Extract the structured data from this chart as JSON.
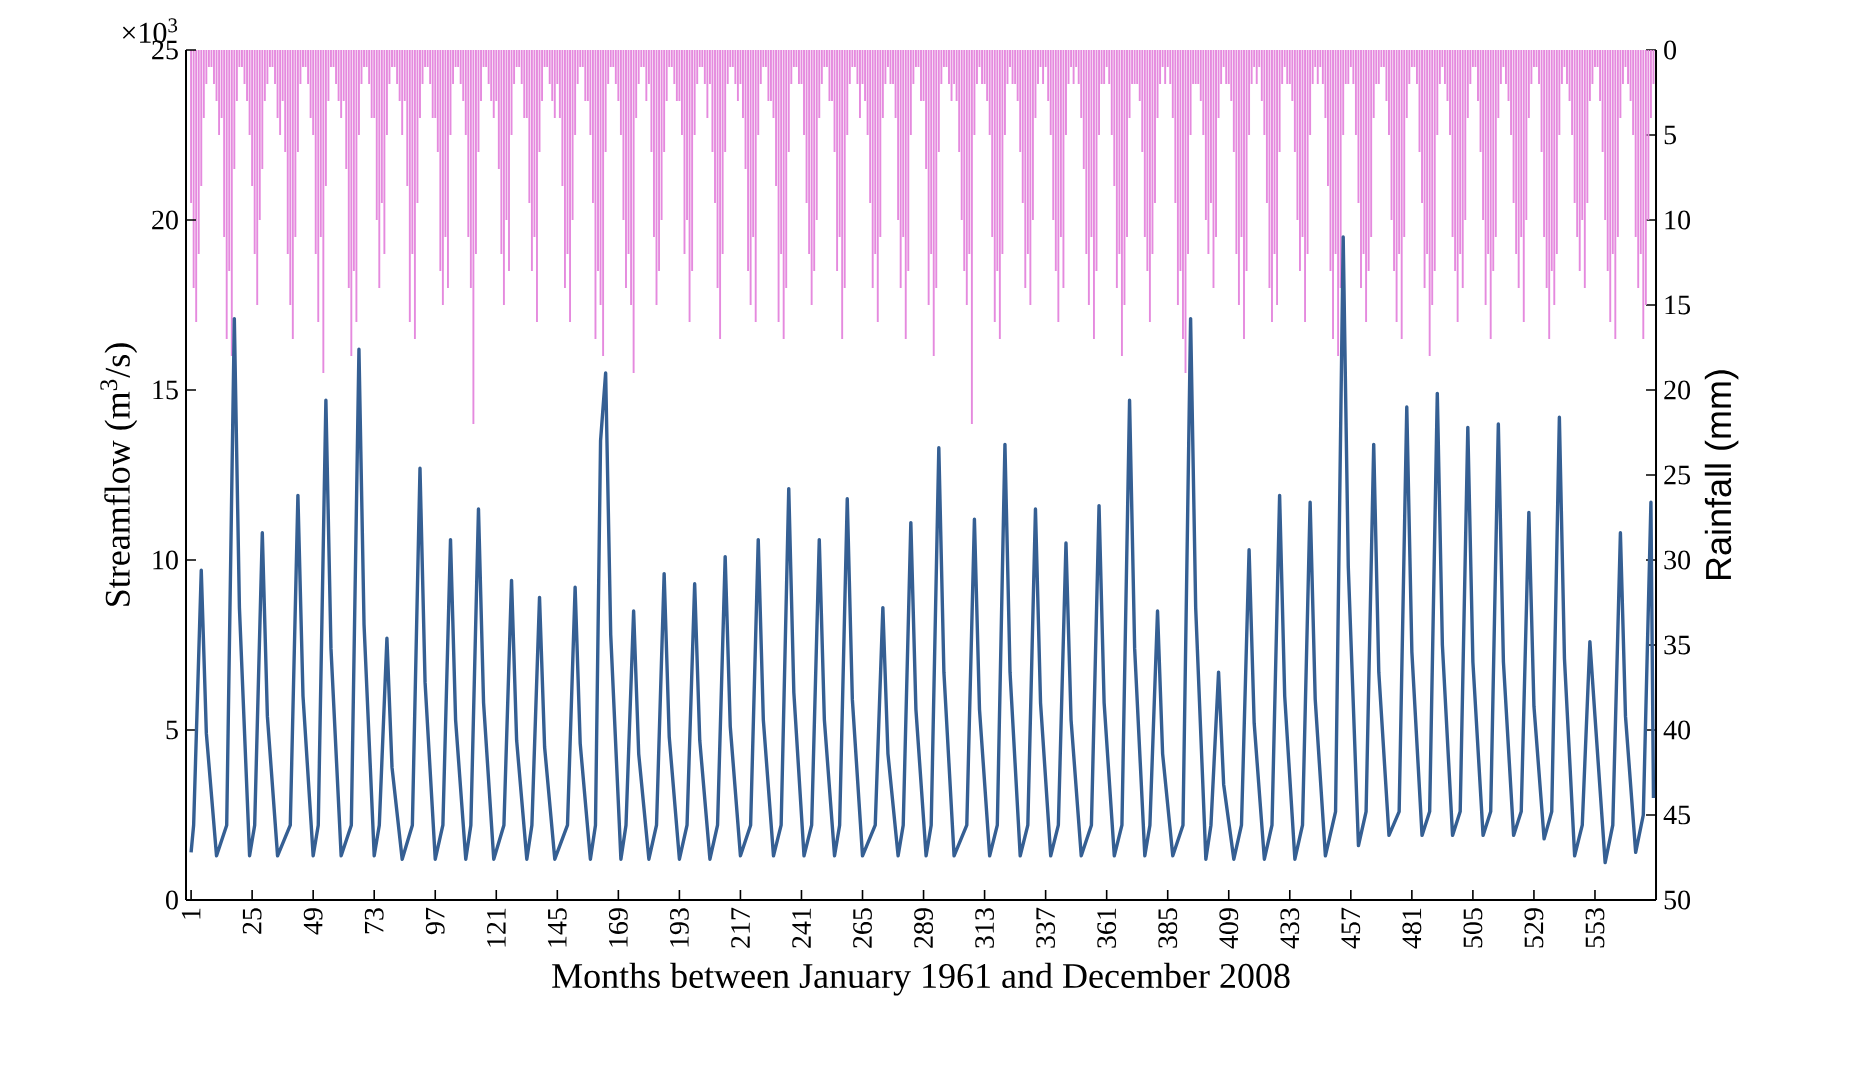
{
  "chart_data": {
    "type": "line",
    "xlabel": "Months between January 1961 and December 2008",
    "ylabel": "Streamflow (m$^{3}$/s)",
    "y2label": "Rainfall (mm)",
    "annotations": [
      "×10$^{3}$"
    ],
    "xlim": [
      -1,
      577
    ],
    "xticks": [
      1,
      25,
      49,
      73,
      97,
      121,
      145,
      169,
      193,
      217,
      241,
      265,
      289,
      313,
      337,
      361,
      385,
      409,
      433,
      457,
      481,
      505,
      529,
      553
    ],
    "ylim": [
      0,
      25
    ],
    "yticks": [
      0,
      5,
      10,
      15,
      20,
      25
    ],
    "y2lim": [
      50,
      0
    ],
    "y2ticks": [
      0,
      5,
      10,
      15,
      20,
      25,
      30,
      35,
      40,
      45,
      50
    ],
    "x": [
      1,
      2,
      3,
      4,
      5,
      6,
      7,
      8,
      9,
      10,
      11,
      12,
      13,
      14,
      15,
      16,
      17,
      18,
      19,
      20,
      21,
      22,
      23,
      24,
      25,
      26,
      27,
      28,
      29,
      30,
      31,
      32,
      33,
      34,
      35,
      36,
      37,
      38,
      39,
      40,
      41,
      42,
      43,
      44,
      45,
      46,
      47,
      48,
      49,
      50,
      51,
      52,
      53,
      54,
      55,
      56,
      57,
      58,
      59,
      60,
      61,
      62,
      63,
      64,
      65,
      66,
      67,
      68,
      69,
      70,
      71,
      72,
      73,
      74,
      75,
      76,
      77,
      78,
      79,
      80,
      81,
      82,
      83,
      84,
      85,
      86,
      87,
      88,
      89,
      90,
      91,
      92,
      93,
      94,
      95,
      96,
      97,
      98,
      99,
      100,
      101,
      102,
      103,
      104,
      105,
      106,
      107,
      108,
      109,
      110,
      111,
      112,
      113,
      114,
      115,
      116,
      117,
      118,
      119,
      120,
      121,
      122,
      123,
      124,
      125,
      126,
      127,
      128,
      129,
      130,
      131,
      132,
      133,
      134,
      135,
      136,
      137,
      138,
      139,
      140,
      141,
      142,
      143,
      144,
      145,
      146,
      147,
      148,
      149,
      150,
      151,
      152,
      153,
      154,
      155,
      156,
      157,
      158,
      159,
      160,
      161,
      162,
      163,
      164,
      165,
      166,
      167,
      168,
      169,
      170,
      171,
      172,
      173,
      174,
      175,
      176,
      177,
      178,
      179,
      180,
      181,
      182,
      183,
      184,
      185,
      186,
      187,
      188,
      189,
      190,
      191,
      192,
      193,
      194,
      195,
      196,
      197,
      198,
      199,
      200,
      201,
      202,
      203,
      204,
      205,
      206,
      207,
      208,
      209,
      210,
      211,
      212,
      213,
      214,
      215,
      216,
      217,
      218,
      219,
      220,
      221,
      222,
      223,
      224,
      225,
      226,
      227,
      228,
      229,
      230,
      231,
      232,
      233,
      234,
      235,
      236,
      237,
      238,
      239,
      240,
      241,
      242,
      243,
      244,
      245,
      246,
      247,
      248,
      249,
      250,
      251,
      252,
      253,
      254,
      255,
      256,
      257,
      258,
      259,
      260,
      261,
      262,
      263,
      264,
      265,
      266,
      267,
      268,
      269,
      270,
      271,
      272,
      273,
      274,
      275,
      276,
      277,
      278,
      279,
      280,
      281,
      282,
      283,
      284,
      285,
      286,
      287,
      288,
      289,
      290,
      291,
      292,
      293,
      294,
      295,
      296,
      297,
      298,
      299,
      300,
      301,
      302,
      303,
      304,
      305,
      306,
      307,
      308,
      309,
      310,
      311,
      312,
      313,
      314,
      315,
      316,
      317,
      318,
      319,
      320,
      321,
      322,
      323,
      324,
      325,
      326,
      327,
      328,
      329,
      330,
      331,
      332,
      333,
      334,
      335,
      336,
      337,
      338,
      339,
      340,
      341,
      342,
      343,
      344,
      345,
      346,
      347,
      348,
      349,
      350,
      351,
      352,
      353,
      354,
      355,
      356,
      357,
      358,
      359,
      360,
      361,
      362,
      363,
      364,
      365,
      366,
      367,
      368,
      369,
      370,
      371,
      372,
      373,
      374,
      375,
      376,
      377,
      378,
      379,
      380,
      381,
      382,
      383,
      384,
      385,
      386,
      387,
      388,
      389,
      390,
      391,
      392,
      393,
      394,
      395,
      396,
      397,
      398,
      399,
      400,
      401,
      402,
      403,
      404,
      405,
      406,
      407,
      408,
      409,
      410,
      411,
      412,
      413,
      414,
      415,
      416,
      417,
      418,
      419,
      420,
      421,
      422,
      423,
      424,
      425,
      426,
      427,
      428,
      429,
      430,
      431,
      432,
      433,
      434,
      435,
      436,
      437,
      438,
      439,
      440,
      441,
      442,
      443,
      444,
      445,
      446,
      447,
      448,
      449,
      450,
      451,
      452,
      453,
      454,
      455,
      456,
      457,
      458,
      459,
      460,
      461,
      462,
      463,
      464,
      465,
      466,
      467,
      468,
      469,
      470,
      471,
      472,
      473,
      474,
      475,
      476,
      477,
      478,
      479,
      480,
      481,
      482,
      483,
      484,
      485,
      486,
      487,
      488,
      489,
      490,
      491,
      492,
      493,
      494,
      495,
      496,
      497,
      498,
      499,
      500,
      501,
      502,
      503,
      504,
      505,
      506,
      507,
      508,
      509,
      510,
      511,
      512,
      513,
      514,
      515,
      516,
      517,
      518,
      519,
      520,
      521,
      522,
      523,
      524,
      525,
      526,
      527,
      528,
      529,
      530,
      531,
      532,
      533,
      534,
      535,
      536,
      537,
      538,
      539,
      540,
      541,
      542,
      543,
      544,
      545,
      546,
      547,
      548,
      549,
      550,
      551,
      552,
      553,
      554,
      555,
      556,
      557,
      558,
      559,
      560,
      561,
      562,
      563,
      564,
      565,
      566,
      567,
      568,
      569,
      570,
      571,
      572,
      573,
      574,
      575,
      576
    ],
    "series": [
      {
        "type": "bar",
        "axis": "y2",
        "color": "#e58ade",
        "values": [
          9,
          14,
          16,
          12,
          8,
          4,
          2,
          1,
          1,
          2,
          3,
          5,
          4,
          11,
          17,
          13,
          18,
          7,
          3,
          1,
          1,
          2,
          3,
          5,
          8,
          12,
          15,
          10,
          7,
          3,
          2,
          1,
          1,
          2,
          4,
          5,
          3,
          6,
          12,
          15,
          17,
          11,
          6,
          2,
          1,
          1,
          2,
          4,
          5,
          12,
          16,
          11,
          19,
          8,
          3,
          1,
          1,
          2,
          3,
          4,
          3,
          7,
          14,
          18,
          13,
          16,
          5,
          2,
          1,
          1,
          2,
          4,
          4,
          10,
          14,
          9,
          12,
          5,
          2,
          1,
          1,
          2,
          3,
          5,
          3,
          8,
          16,
          12,
          17,
          9,
          4,
          2,
          1,
          1,
          2,
          4,
          4,
          6,
          13,
          15,
          11,
          14,
          5,
          2,
          1,
          1,
          2,
          3,
          5,
          11,
          14,
          22,
          12,
          6,
          3,
          1,
          1,
          2,
          3,
          4,
          3,
          7,
          12,
          15,
          10,
          13,
          5,
          2,
          1,
          1,
          2,
          4,
          4,
          9,
          13,
          11,
          16,
          6,
          3,
          1,
          1,
          2,
          3,
          4,
          2,
          4,
          8,
          14,
          12,
          16,
          10,
          5,
          2,
          1,
          1,
          3,
          3,
          5,
          9,
          17,
          13,
          15,
          18,
          6,
          2,
          1,
          1,
          2,
          3,
          5,
          10,
          14,
          12,
          15,
          19,
          4,
          2,
          1,
          1,
          3,
          2,
          6,
          11,
          15,
          13,
          10,
          6,
          3,
          1,
          1,
          2,
          3,
          3,
          5,
          12,
          10,
          16,
          13,
          5,
          2,
          1,
          1,
          2,
          4,
          2,
          6,
          9,
          14,
          17,
          12,
          6,
          2,
          1,
          1,
          2,
          3,
          2,
          4,
          7,
          13,
          15,
          11,
          16,
          5,
          2,
          1,
          1,
          3,
          3,
          4,
          8,
          16,
          12,
          17,
          14,
          6,
          2,
          1,
          1,
          2,
          2,
          5,
          9,
          12,
          15,
          13,
          10,
          4,
          2,
          1,
          1,
          3,
          3,
          6,
          13,
          11,
          17,
          14,
          5,
          2,
          1,
          1,
          2,
          4,
          2,
          3,
          5,
          9,
          14,
          12,
          16,
          11,
          4,
          2,
          1,
          2,
          2,
          4,
          10,
          14,
          11,
          17,
          13,
          5,
          2,
          1,
          1,
          3,
          3,
          7,
          15,
          12,
          18,
          14,
          6,
          2,
          1,
          1,
          2,
          3,
          2,
          3,
          6,
          10,
          13,
          15,
          12,
          22,
          5,
          2,
          1,
          2,
          2,
          3,
          5,
          11,
          16,
          13,
          17,
          12,
          5,
          2,
          1,
          2,
          2,
          3,
          6,
          9,
          14,
          12,
          15,
          10,
          4,
          2,
          1,
          2,
          1,
          3,
          5,
          10,
          13,
          16,
          11,
          14,
          5,
          2,
          1,
          2,
          1,
          2,
          4,
          7,
          12,
          15,
          11,
          17,
          13,
          5,
          2,
          2,
          1,
          2,
          5,
          8,
          14,
          12,
          18,
          15,
          11,
          4,
          2,
          2,
          2,
          3,
          6,
          11,
          13,
          16,
          12,
          9,
          4,
          2,
          1,
          2,
          1,
          2,
          4,
          9,
          15,
          13,
          17,
          19,
          12,
          5,
          2,
          2,
          2,
          3,
          5,
          10,
          12,
          9,
          14,
          11,
          4,
          2,
          1,
          2,
          2,
          3,
          6,
          12,
          15,
          11,
          17,
          13,
          5,
          2,
          1,
          2,
          1,
          3,
          5,
          9,
          14,
          16,
          12,
          15,
          6,
          2,
          1,
          2,
          2,
          3,
          6,
          10,
          13,
          11,
          16,
          12,
          5,
          2,
          1,
          2,
          1,
          2,
          4,
          8,
          13,
          17,
          12,
          18,
          14,
          5,
          2,
          2,
          1,
          2,
          5,
          9,
          14,
          12,
          16,
          13,
          11,
          4,
          2,
          2,
          1,
          1,
          3,
          5,
          10,
          13,
          16,
          12,
          17,
          11,
          4,
          2,
          1,
          1,
          2,
          6,
          9,
          14,
          12,
          18,
          15,
          13,
          5,
          2,
          1,
          2,
          3,
          5,
          11,
          13,
          16,
          12,
          14,
          10,
          4,
          2,
          1,
          1,
          3,
          6,
          10,
          15,
          12,
          17,
          13,
          11,
          4,
          2,
          1,
          2,
          3,
          5,
          9,
          12,
          14,
          11,
          16,
          10,
          4,
          2,
          1,
          1,
          2,
          6,
          11,
          14,
          17,
          13,
          15,
          12,
          5,
          2,
          1,
          2,
          3,
          5,
          9,
          11,
          13,
          10,
          14,
          9,
          3,
          2,
          1,
          1,
          3,
          6,
          10,
          13,
          16,
          12,
          17,
          11,
          4,
          2,
          1,
          2,
          3,
          5,
          11,
          14,
          12,
          17,
          15,
          10,
          4,
          2
        ]
      },
      {
        "axis": "y",
        "color": "#355f93",
        "x": [
          1,
          2,
          5,
          7,
          11,
          15,
          18,
          20,
          24,
          26,
          29,
          31,
          35,
          40,
          43,
          45,
          49,
          51,
          54,
          56,
          60,
          64,
          67,
          69,
          73,
          75,
          78,
          80,
          84,
          88,
          91,
          93,
          97,
          100,
          103,
          105,
          109,
          111,
          114,
          116,
          120,
          124,
          127,
          129,
          133,
          135,
          138,
          140,
          144,
          149,
          152,
          154,
          158,
          160,
          162,
          164,
          166,
          170,
          172,
          175,
          177,
          181,
          184,
          187,
          189,
          193,
          196,
          199,
          201,
          205,
          208,
          211,
          213,
          217,
          221,
          224,
          226,
          230,
          233,
          236,
          238,
          242,
          245,
          248,
          250,
          254,
          256,
          259,
          261,
          265,
          270,
          273,
          275,
          279,
          281,
          284,
          286,
          290,
          292,
          295,
          297,
          301,
          306,
          309,
          311,
          315,
          318,
          321,
          323,
          327,
          330,
          333,
          335,
          339,
          342,
          345,
          347,
          351,
          355,
          358,
          360,
          364,
          367,
          370,
          372,
          376,
          378,
          381,
          383,
          387,
          391,
          394,
          396,
          400,
          402,
          405,
          407,
          411,
          414,
          417,
          419,
          423,
          426,
          429,
          431,
          435,
          438,
          441,
          443,
          447,
          451,
          454,
          456,
          460,
          463,
          466,
          468,
          472,
          476,
          479,
          481,
          485,
          488,
          491,
          493,
          497,
          500,
          503,
          505,
          509,
          512,
          515,
          517,
          521,
          524,
          527,
          529,
          533,
          536,
          539,
          541,
          545,
          548,
          551,
          553,
          557,
          560,
          563,
          565,
          569,
          572,
          575,
          576
        ],
        "values": [
          1.4,
          2.2,
          9.7,
          4.9,
          1.3,
          2.2,
          17.1,
          8.6,
          1.3,
          2.2,
          10.8,
          5.4,
          1.3,
          2.2,
          11.9,
          6.0,
          1.3,
          2.2,
          14.7,
          7.4,
          1.3,
          2.2,
          16.2,
          8.1,
          1.3,
          2.2,
          7.7,
          3.9,
          1.2,
          2.2,
          12.7,
          6.4,
          1.2,
          2.2,
          10.6,
          5.3,
          1.2,
          2.2,
          11.5,
          5.8,
          1.2,
          2.2,
          9.4,
          4.7,
          1.2,
          2.2,
          8.9,
          4.5,
          1.2,
          2.2,
          9.2,
          4.6,
          1.2,
          2.2,
          13.5,
          15.5,
          7.8,
          1.2,
          2.2,
          8.5,
          4.3,
          1.2,
          2.2,
          9.6,
          4.8,
          1.2,
          2.2,
          9.3,
          4.7,
          1.2,
          2.2,
          10.1,
          5.1,
          1.3,
          2.2,
          10.6,
          5.3,
          1.3,
          2.2,
          12.1,
          6.1,
          1.3,
          2.2,
          10.6,
          5.3,
          1.3,
          2.2,
          11.8,
          5.9,
          1.3,
          2.2,
          8.6,
          4.3,
          1.3,
          2.2,
          11.1,
          5.6,
          1.3,
          2.2,
          13.3,
          6.7,
          1.3,
          2.2,
          11.2,
          5.6,
          1.3,
          2.2,
          13.4,
          6.7,
          1.3,
          2.2,
          11.5,
          5.8,
          1.3,
          2.2,
          10.5,
          5.3,
          1.3,
          2.2,
          11.6,
          5.8,
          1.3,
          2.2,
          14.7,
          7.4,
          1.3,
          2.2,
          8.5,
          4.3,
          1.3,
          2.2,
          17.1,
          8.6,
          1.2,
          2.2,
          6.7,
          3.4,
          1.2,
          2.2,
          10.3,
          5.2,
          1.2,
          2.2,
          11.9,
          6.0,
          1.2,
          2.2,
          11.7,
          5.9,
          1.3,
          2.6,
          19.5,
          9.8,
          1.6,
          2.6,
          13.4,
          6.7,
          1.9,
          2.6,
          14.5,
          7.3,
          1.9,
          2.6,
          14.9,
          7.5,
          1.9,
          2.6,
          13.9,
          7.0,
          1.9,
          2.6,
          14.0,
          7.0,
          1.9,
          2.6,
          11.4,
          5.7,
          1.8,
          2.6,
          14.2,
          7.1,
          1.3,
          2.2,
          7.6,
          5.4,
          1.1,
          2.2,
          10.8,
          5.4,
          1.4,
          2.5,
          11.7,
          3.0
        ]
      }
    ]
  }
}
